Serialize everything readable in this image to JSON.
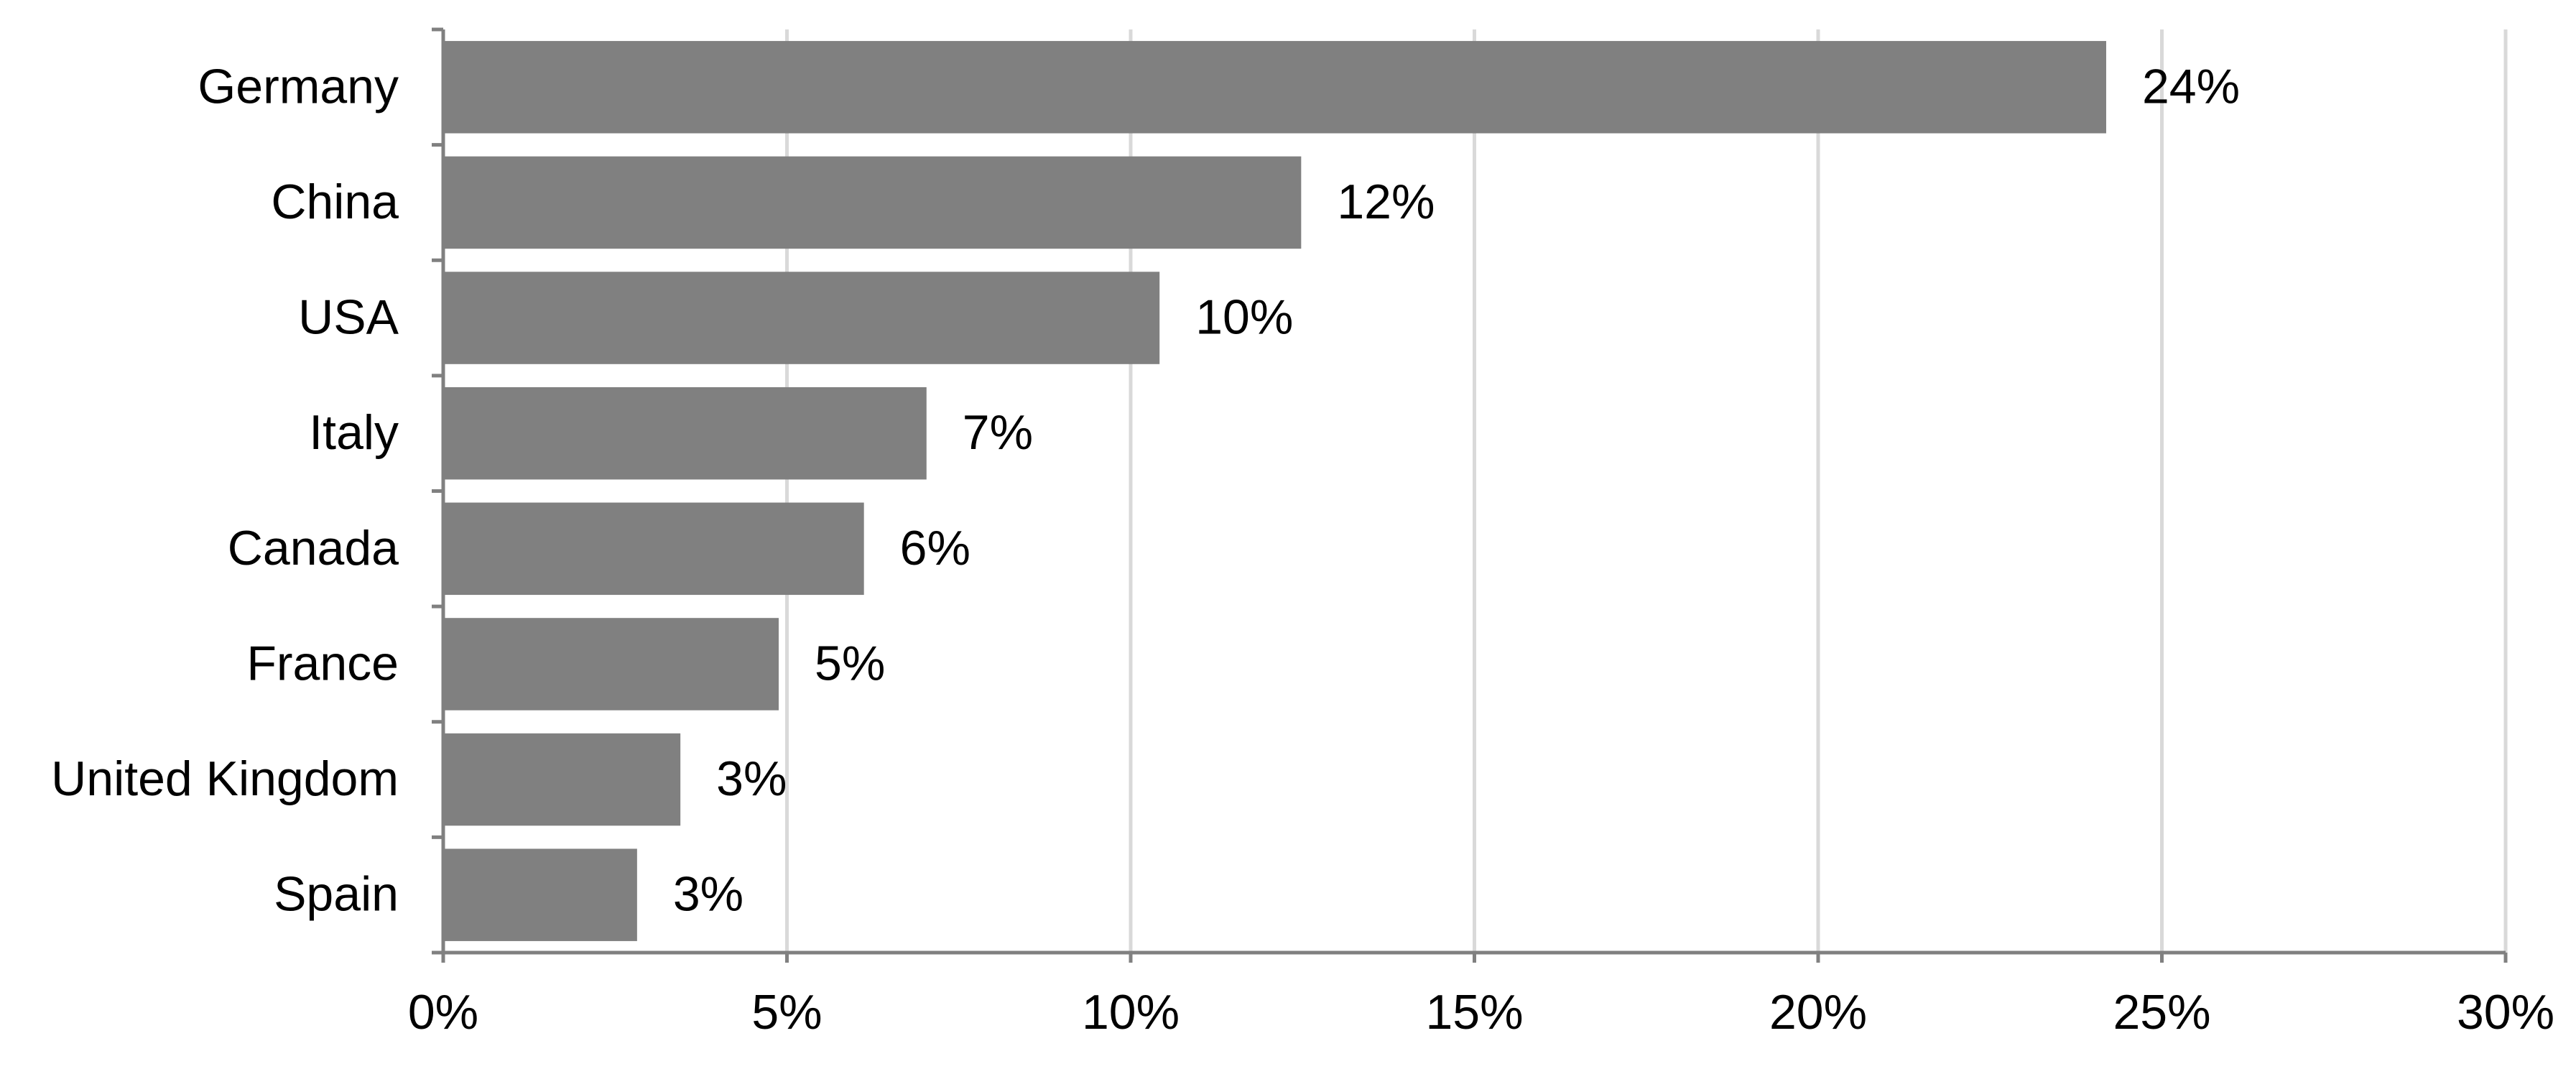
{
  "chart_data": {
    "type": "hbar",
    "categories": [
      "Germany",
      "China",
      "USA",
      "Italy",
      "Canada",
      "France",
      "United Kingdom",
      "Spain"
    ],
    "values": [
      24.19,
      12.48,
      10.42,
      7.03,
      6.12,
      4.88,
      3.45,
      2.82
    ],
    "value_labels": [
      "24%",
      "12%",
      "10%",
      "7%",
      "6%",
      "5%",
      "3%",
      "3%"
    ],
    "color": "#808080",
    "xlim": [
      0,
      30
    ],
    "xticks": [
      {
        "value": 0,
        "label": "0%"
      },
      {
        "value": 5,
        "label": "5%"
      },
      {
        "value": 10,
        "label": "10%"
      },
      {
        "value": 15,
        "label": "15%"
      },
      {
        "value": 20,
        "label": "20%"
      },
      {
        "value": 25,
        "label": "25%"
      },
      {
        "value": 30,
        "label": "30%"
      }
    ],
    "grid": true
  }
}
